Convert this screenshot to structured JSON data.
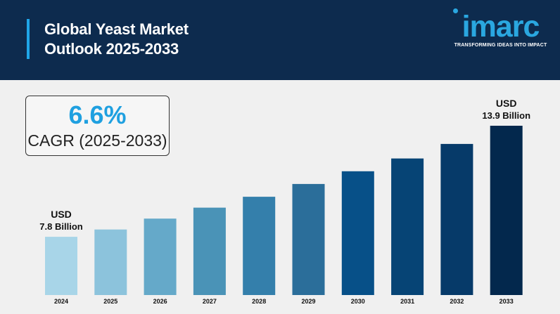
{
  "header": {
    "title": "Global Yeast Market\nOutlook 2025-2033"
  },
  "logo": {
    "brand": "imarc",
    "tagline": "TRANSFORMING IDEAS INTO IMPACT",
    "icon": "imarc-logo-icon"
  },
  "cagr": {
    "value": "6.6%",
    "label": "CAGR (2025-2033)"
  },
  "colors": {
    "header_bg": "#0d2b4e",
    "accent": "#1fa6e8",
    "bar_colors": [
      "#a8d5e8",
      "#8cc3dc",
      "#65a9c9",
      "#4a93b7",
      "#347fab",
      "#2b6e9a",
      "#075088",
      "#064475",
      "#063a69",
      "#03284d"
    ]
  },
  "chart_data": {
    "type": "bar",
    "categories": [
      "2024",
      "2025",
      "2026",
      "2027",
      "2028",
      "2029",
      "2030",
      "2031",
      "2032",
      "2033"
    ],
    "values": [
      7.8,
      8.2,
      8.8,
      9.4,
      10.0,
      10.7,
      11.4,
      12.1,
      12.9,
      13.9
    ],
    "annotations": [
      {
        "category": "2024",
        "line1": "USD",
        "line2": "7.8 Billion"
      },
      {
        "category": "2033",
        "line1": "USD",
        "line2": "13.9 Billion"
      }
    ],
    "title": "",
    "xlabel": "",
    "ylabel": "",
    "ylim": [
      4.6,
      13.9
    ],
    "grid": false,
    "legend": "none"
  }
}
